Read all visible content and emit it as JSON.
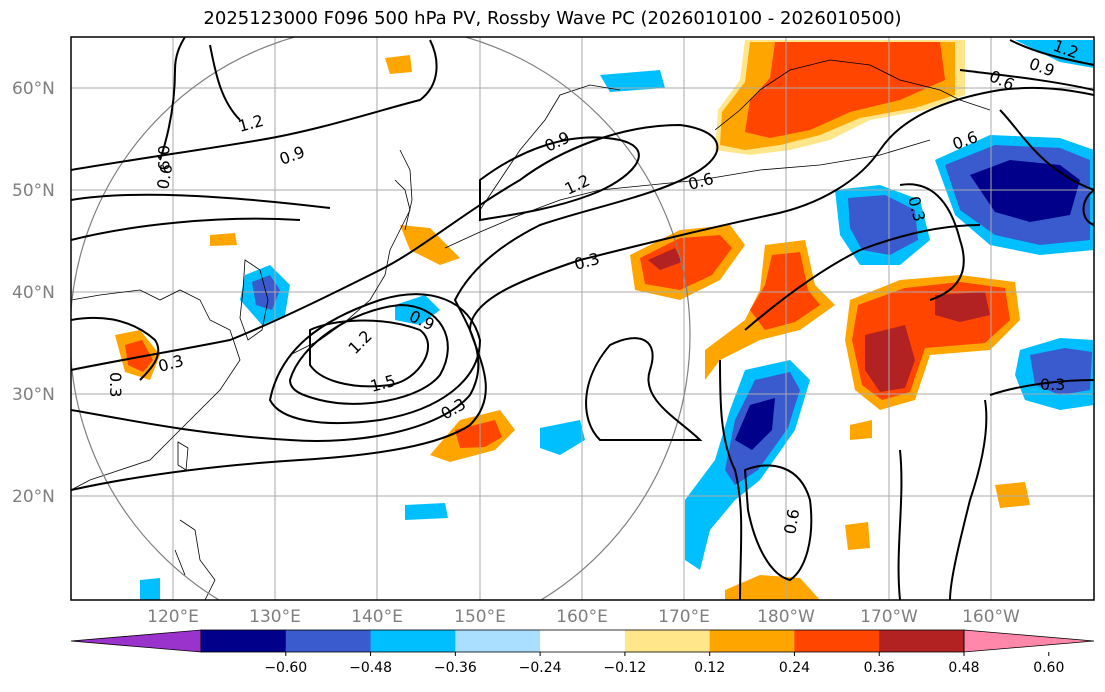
{
  "title": "2025123000 F096 500 hPa PV, Rossby Wave PC (2026010100 - 2026010500)",
  "lat_labels": [
    "60°N",
    "50°N",
    "40°N",
    "30°N",
    "20°N"
  ],
  "lon_labels": [
    "120°E",
    "130°E",
    "140°E",
    "150°E",
    "160°E",
    "170°E",
    "180°W",
    "170°W",
    "160°W"
  ],
  "colorbar": {
    "ticks": [
      "−0.60",
      "−0.48",
      "−0.36",
      "−0.24",
      "−0.12",
      "0.12",
      "0.24",
      "0.36",
      "0.48",
      "0.60"
    ],
    "colors": [
      "#9933cc",
      "#00008b",
      "#3a5bcd",
      "#00bfff",
      "#aadfff",
      "#ffffff",
      "#ffe68a",
      "#ffa500",
      "#ff4500",
      "#b22222",
      "#ff88aa"
    ]
  },
  "contour_labels": [
    {
      "text": "1.2"
    },
    {
      "text": "0.9"
    },
    {
      "text": "0.9"
    },
    {
      "text": "0.6"
    },
    {
      "text": "0.9"
    },
    {
      "text": "1.2"
    },
    {
      "text": "0.6"
    },
    {
      "text": "0.3"
    },
    {
      "text": "0.9"
    },
    {
      "text": "1.2"
    },
    {
      "text": "1.5"
    },
    {
      "text": "0.3"
    },
    {
      "text": "0.3"
    },
    {
      "text": "0.3"
    },
    {
      "text": "0.3"
    },
    {
      "text": "0.6"
    },
    {
      "text": "0.6"
    },
    {
      "text": "0.6"
    },
    {
      "text": "0.9"
    },
    {
      "text": "1.2"
    },
    {
      "text": "0.3"
    }
  ]
}
